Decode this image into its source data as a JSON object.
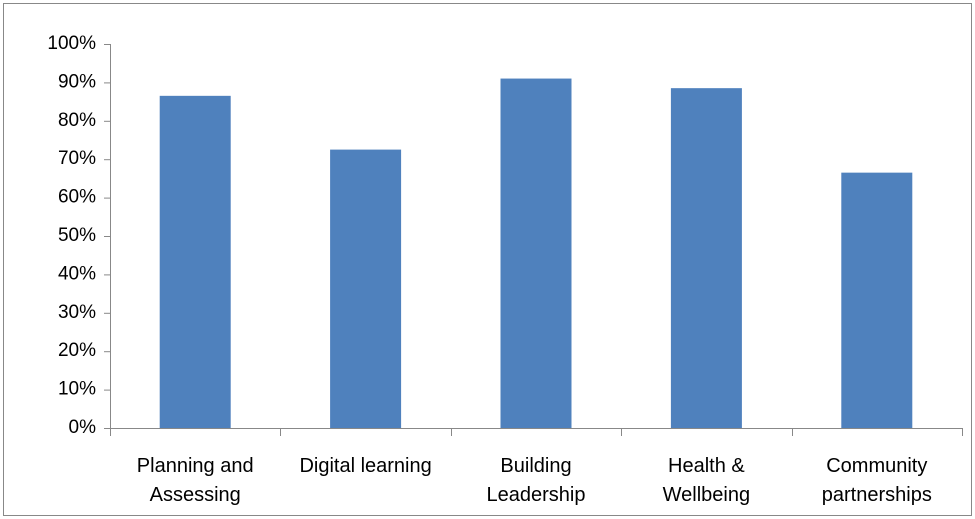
{
  "chart_data": {
    "type": "bar",
    "categories": [
      "Planning and Assessing",
      "Digital learning",
      "Building Leadership",
      "Health & Wellbeing",
      "Community partnerships"
    ],
    "values": [
      86.5,
      72.5,
      91,
      88.5,
      66.5
    ],
    "color": "#4f81bd",
    "ylim": [
      0,
      100
    ],
    "yticks": [
      {
        "value": 0,
        "label": "0%"
      },
      {
        "value": 10,
        "label": "10%"
      },
      {
        "value": 20,
        "label": "20%"
      },
      {
        "value": 30,
        "label": "30%"
      },
      {
        "value": 40,
        "label": "40%"
      },
      {
        "value": 50,
        "label": "50%"
      },
      {
        "value": 60,
        "label": "60%"
      },
      {
        "value": 70,
        "label": "70%"
      },
      {
        "value": 80,
        "label": "80%"
      },
      {
        "value": 90,
        "label": "90%"
      },
      {
        "value": 100,
        "label": "100%"
      }
    ],
    "grid": false
  }
}
